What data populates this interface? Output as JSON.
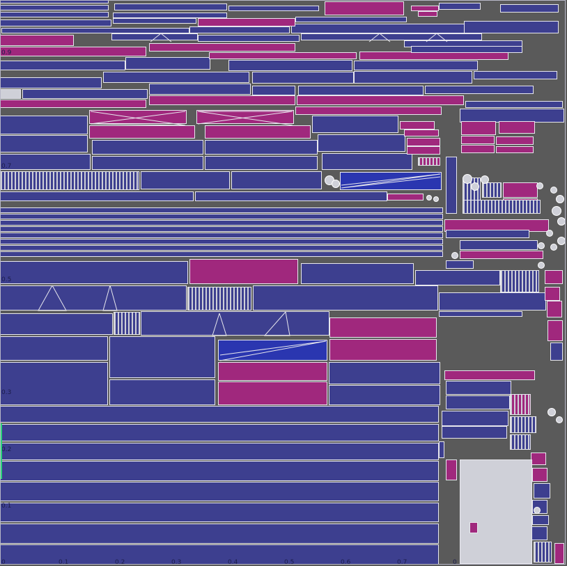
{
  "viewport": {
    "name": "UV layout view",
    "colors": {
      "background": "#5a5a5a",
      "island_blue": "#3d3f8f",
      "island_magenta": "#a0287d",
      "island_selected": "#2a36b0",
      "outline": "#e8e8ee",
      "grid_label": "#1b1c4a"
    }
  },
  "axes": {
    "u_ticks": [
      "0",
      "0.1",
      "0.2",
      "0.3",
      "0.4",
      "0.5",
      "0.6",
      "0.7"
    ],
    "v_ticks": [
      "0.1",
      "0.2",
      "0.3",
      "0.5",
      "0.7",
      "0.9"
    ],
    "tile_tick": "0"
  }
}
